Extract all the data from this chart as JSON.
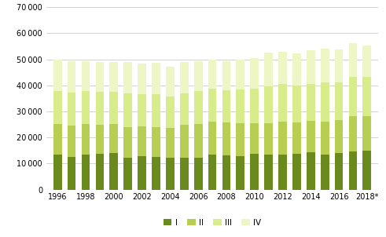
{
  "years": [
    1996,
    1997,
    1998,
    1999,
    2000,
    2001,
    2002,
    2003,
    2004,
    2005,
    2006,
    2007,
    2008,
    2009,
    2010,
    2011,
    2012,
    2013,
    2014,
    2015,
    2016,
    2017,
    2018
  ],
  "Q1": [
    13500,
    12500,
    13500,
    13800,
    14000,
    12200,
    12700,
    12500,
    12300,
    12200,
    12200,
    13500,
    13200,
    12900,
    13600,
    13300,
    13400,
    13700,
    14300,
    13300,
    13900,
    14700,
    14800
  ],
  "Q2": [
    11800,
    12200,
    11800,
    11200,
    11200,
    11800,
    11500,
    11500,
    11400,
    12700,
    13000,
    12700,
    12500,
    12500,
    12000,
    12300,
    12600,
    12200,
    12200,
    12900,
    12800,
    13400,
    13400
  ],
  "Q3": [
    12500,
    12500,
    12500,
    12500,
    12300,
    13000,
    12500,
    12500,
    12000,
    12000,
    12500,
    12500,
    12500,
    13000,
    13000,
    14000,
    14500,
    14000,
    14000,
    15000,
    14500,
    15000,
    15000
  ],
  "Q4": [
    12000,
    12000,
    11500,
    11500,
    11500,
    12000,
    11500,
    12000,
    11500,
    12000,
    11500,
    11000,
    11000,
    11500,
    12000,
    13000,
    12500,
    12500,
    13000,
    13000,
    12500,
    13000,
    12000
  ],
  "colors": [
    "#6b8a1e",
    "#b8ce52",
    "#d8ec8c",
    "#eef6c5"
  ],
  "ylim": [
    0,
    70000
  ],
  "yticks": [
    0,
    10000,
    20000,
    30000,
    40000,
    50000,
    60000,
    70000
  ],
  "legend_labels": [
    "I",
    "II",
    "III",
    "IV"
  ],
  "xtick_labels": [
    "1996",
    "1998",
    "2000",
    "2002",
    "2004",
    "2006",
    "2008",
    "2010",
    "2012",
    "2014",
    "2016",
    "2018*"
  ],
  "xtick_positions": [
    1996,
    1998,
    2000,
    2002,
    2004,
    2006,
    2008,
    2010,
    2012,
    2014,
    2016,
    2018
  ]
}
